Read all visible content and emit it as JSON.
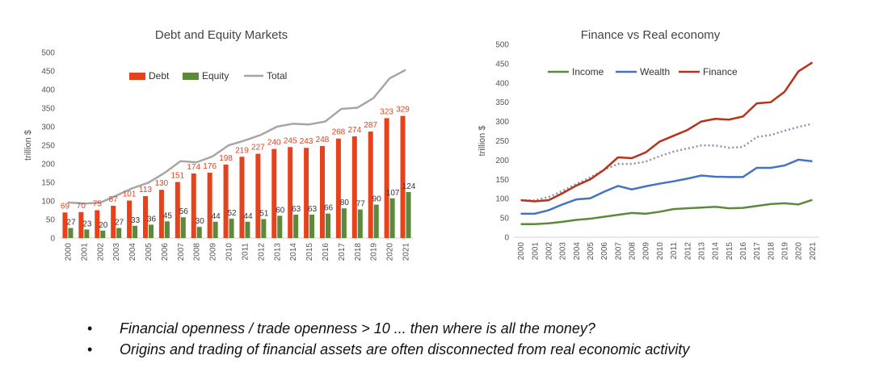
{
  "charts": {
    "debt_equity": {
      "title": "Debt and Equity Markets",
      "ylabel": "trillion $",
      "legend": [
        "Debt",
        "Equity",
        "Total"
      ]
    },
    "finance_real": {
      "title": "Finance vs Real economy",
      "ylabel": "trillion $",
      "legend": [
        "Income",
        "Wealth",
        "Finance"
      ]
    }
  },
  "bullets": [
    "Financial openness / trade openness > 10 ... then where is all the money?",
    "Origins and trading of financial assets are often disconnected from real economic activity"
  ],
  "bullet_symbol": "•",
  "colors": {
    "debt": "#E8421C",
    "equity": "#5B8A3A",
    "total": "#A6A6A6",
    "income": "#5B8A3A",
    "wealth": "#4472C4",
    "finance": "#B8321A",
    "dotted": "#8497B0"
  },
  "chart_data": [
    {
      "type": "bar",
      "title": "Debt and Equity Markets",
      "ylabel": "trillion $",
      "ylim": [
        0,
        500
      ],
      "yticks": [
        0,
        50,
        100,
        150,
        200,
        250,
        300,
        350,
        400,
        450,
        500
      ],
      "legend_position": "top",
      "categories": [
        "2000",
        "2001",
        "2002",
        "2003",
        "2004",
        "2005",
        "2006",
        "2007",
        "2008",
        "2009",
        "2010",
        "2011",
        "2012",
        "2013",
        "2014",
        "2015",
        "2016",
        "2017",
        "2018",
        "2019",
        "2020",
        "2021"
      ],
      "series": [
        {
          "name": "Debt",
          "kind": "bar",
          "values": [
            69,
            70,
            75,
            87,
            101,
            113,
            130,
            151,
            174,
            176,
            198,
            219,
            227,
            240,
            245,
            243,
            248,
            268,
            274,
            287,
            323,
            329
          ]
        },
        {
          "name": "Equity",
          "kind": "bar",
          "values": [
            27,
            23,
            20,
            27,
            33,
            36,
            45,
            56,
            30,
            44,
            52,
            44,
            51,
            60,
            63,
            63,
            66,
            80,
            77,
            90,
            107,
            124
          ]
        },
        {
          "name": "Total",
          "kind": "line",
          "values": [
            96,
            93,
            95,
            114,
            134,
            149,
            175,
            207,
            204,
            220,
            250,
            263,
            278,
            300,
            308,
            306,
            314,
            348,
            351,
            377,
            430,
            453
          ]
        }
      ]
    },
    {
      "type": "line",
      "title": "Finance vs Real economy",
      "ylabel": "trillion $",
      "ylim": [
        0,
        500
      ],
      "yticks": [
        0,
        50,
        100,
        150,
        200,
        250,
        300,
        350,
        400,
        450,
        500
      ],
      "legend_position": "top",
      "categories": [
        "2000",
        "2001",
        "2002",
        "2003",
        "2004",
        "2005",
        "2006",
        "2007",
        "2008",
        "2009",
        "2010",
        "2011",
        "2012",
        "2013",
        "2014",
        "2015",
        "2016",
        "2017",
        "2018",
        "2019",
        "2020",
        "2021"
      ],
      "series": [
        {
          "name": "Income",
          "values": [
            34,
            34,
            36,
            40,
            45,
            48,
            53,
            58,
            63,
            61,
            66,
            73,
            75,
            77,
            79,
            75,
            76,
            81,
            86,
            88,
            85,
            97
          ]
        },
        {
          "name": "Wealth",
          "values": [
            61,
            61,
            70,
            85,
            98,
            101,
            118,
            133,
            124,
            132,
            139,
            145,
            152,
            160,
            157,
            156,
            156,
            180,
            180,
            186,
            201,
            197
          ]
        },
        {
          "name": "Finance",
          "values": [
            96,
            93,
            96,
            114,
            134,
            150,
            175,
            207,
            205,
            220,
            248,
            263,
            278,
            300,
            307,
            305,
            313,
            347,
            350,
            377,
            430,
            453
          ]
        },
        {
          "name": "",
          "dashed": true,
          "values": [
            96,
            96,
            104,
            120,
            138,
            155,
            175,
            190,
            190,
            196,
            210,
            222,
            230,
            238,
            238,
            232,
            234,
            260,
            265,
            276,
            286,
            294
          ]
        }
      ]
    }
  ]
}
